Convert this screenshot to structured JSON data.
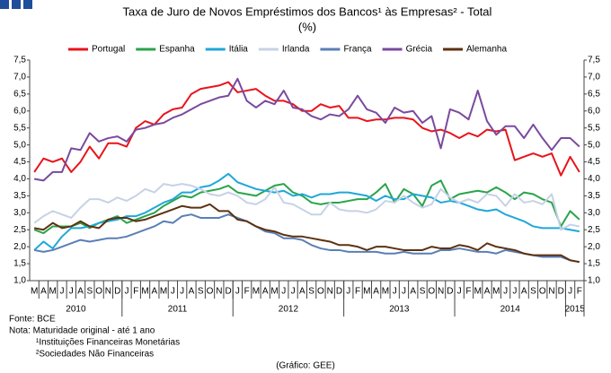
{
  "chart_data": {
    "type": "line",
    "title": "Taxa de Juro de Novos Empréstimos dos Bancos¹ às Empresas² - Total",
    "subtitle": "(%)",
    "categories": [
      "M",
      "A",
      "M",
      "J",
      "J",
      "A",
      "S",
      "O",
      "N",
      "D",
      "J",
      "F",
      "M",
      "A",
      "M",
      "J",
      "J",
      "A",
      "S",
      "O",
      "N",
      "D",
      "J",
      "F",
      "M",
      "A",
      "M",
      "J",
      "J",
      "A",
      "S",
      "O",
      "N",
      "D",
      "J",
      "F",
      "M",
      "A",
      "M",
      "J",
      "J",
      "A",
      "S",
      "O",
      "N",
      "D",
      "J",
      "F",
      "M",
      "A",
      "M",
      "J",
      "J",
      "A",
      "S",
      "O",
      "N",
      "D",
      "J",
      "F"
    ],
    "years": [
      {
        "label": "2010",
        "months": 10
      },
      {
        "label": "2011",
        "months": 12
      },
      {
        "label": "2012",
        "months": 12
      },
      {
        "label": "2013",
        "months": 12
      },
      {
        "label": "2014",
        "months": 12
      },
      {
        "label": "2015",
        "months": 2
      }
    ],
    "ylim": [
      1.0,
      7.5
    ],
    "yticks": [
      {
        "value": 1.0,
        "label": "1,0"
      },
      {
        "value": 1.5,
        "label": "1,5"
      },
      {
        "value": 2.0,
        "label": "2,0"
      },
      {
        "value": 2.5,
        "label": "2,5"
      },
      {
        "value": 3.0,
        "label": "3,0"
      },
      {
        "value": 3.5,
        "label": "3,5"
      },
      {
        "value": 4.0,
        "label": "4,0"
      },
      {
        "value": 4.5,
        "label": "4,5"
      },
      {
        "value": 5.0,
        "label": "5,0"
      },
      {
        "value": 5.5,
        "label": "5,5"
      },
      {
        "value": 6.0,
        "label": "6,0"
      },
      {
        "value": 6.5,
        "label": "6,5"
      },
      {
        "value": 7.0,
        "label": "7,0"
      },
      {
        "value": 7.5,
        "label": "7,5"
      }
    ],
    "y2lim": [
      1.0,
      7.5
    ],
    "y2ticks": [
      {
        "value": 1.0,
        "label": "1,0"
      },
      {
        "value": 1.5,
        "label": "1,5"
      },
      {
        "value": 2.0,
        "label": "2,0"
      },
      {
        "value": 2.5,
        "label": "2,5"
      },
      {
        "value": 3.0,
        "label": "3,0"
      },
      {
        "value": 3.5,
        "label": "3,5"
      },
      {
        "value": 4.0,
        "label": "4,0"
      },
      {
        "value": 4.5,
        "label": "4,5"
      },
      {
        "value": 5.0,
        "label": "5,0"
      },
      {
        "value": 5.5,
        "label": "5,5"
      },
      {
        "value": 6.0,
        "label": "6,0"
      },
      {
        "value": 6.5,
        "label": "6,5"
      },
      {
        "value": 7.0,
        "label": "7,0"
      },
      {
        "value": 7.5,
        "label": "7,5"
      }
    ],
    "grid": false,
    "legend": "top",
    "series": [
      {
        "name": "Portugal",
        "color": "#e8141c",
        "values": [
          4.2,
          4.6,
          4.5,
          4.6,
          4.2,
          4.5,
          4.95,
          4.6,
          5.05,
          5.05,
          4.95,
          5.5,
          5.7,
          5.6,
          5.9,
          6.05,
          6.1,
          6.5,
          6.65,
          6.7,
          6.75,
          6.85,
          6.55,
          6.6,
          6.65,
          6.45,
          6.3,
          6.3,
          6.2,
          6.0,
          6.0,
          6.2,
          6.1,
          6.15,
          5.8,
          5.8,
          5.7,
          5.75,
          5.75,
          5.8,
          5.8,
          5.75,
          5.5,
          5.4,
          5.45,
          5.35,
          5.2,
          5.35,
          5.25,
          5.45,
          5.4,
          5.45,
          4.55,
          4.65,
          4.75,
          4.65,
          4.75,
          4.1,
          4.65,
          4.2
        ]
      },
      {
        "name": "Espanha",
        "color": "#2aa44a",
        "values": [
          2.5,
          2.4,
          2.6,
          2.6,
          2.6,
          2.7,
          2.55,
          2.7,
          2.8,
          2.9,
          2.7,
          2.8,
          2.9,
          3.0,
          3.2,
          3.35,
          3.5,
          3.45,
          3.6,
          3.65,
          3.7,
          3.8,
          3.6,
          3.55,
          3.5,
          3.65,
          3.8,
          3.85,
          3.6,
          3.5,
          3.3,
          3.25,
          3.3,
          3.3,
          3.35,
          3.4,
          3.4,
          3.6,
          3.85,
          3.3,
          3.7,
          3.55,
          3.2,
          3.8,
          3.95,
          3.4,
          3.55,
          3.6,
          3.65,
          3.6,
          3.75,
          3.6,
          3.4,
          3.6,
          3.55,
          3.4,
          3.3,
          2.6,
          3.05,
          2.8
        ]
      },
      {
        "name": "Itália",
        "color": "#1fa8d8",
        "values": [
          1.9,
          2.15,
          1.95,
          2.3,
          2.55,
          2.55,
          2.6,
          2.7,
          2.75,
          2.8,
          2.9,
          2.9,
          3.0,
          3.15,
          3.3,
          3.4,
          3.6,
          3.6,
          3.75,
          3.8,
          3.95,
          4.15,
          3.9,
          3.8,
          3.7,
          3.65,
          3.6,
          3.65,
          3.5,
          3.55,
          3.45,
          3.55,
          3.55,
          3.6,
          3.6,
          3.55,
          3.5,
          3.35,
          3.5,
          3.4,
          3.4,
          3.55,
          3.5,
          3.45,
          3.3,
          3.35,
          3.3,
          3.2,
          3.1,
          3.05,
          3.1,
          2.95,
          2.85,
          2.75,
          2.6,
          2.55,
          2.55,
          2.55,
          2.5,
          2.45
        ]
      },
      {
        "name": "Irlanda",
        "color": "#c6d2e6",
        "values": [
          2.7,
          2.9,
          3.05,
          2.95,
          2.85,
          3.15,
          3.4,
          3.4,
          3.3,
          3.45,
          3.35,
          3.5,
          3.7,
          3.6,
          3.85,
          3.8,
          3.85,
          3.8,
          3.7,
          3.55,
          3.5,
          3.6,
          3.5,
          3.3,
          3.25,
          3.4,
          3.75,
          3.3,
          3.25,
          3.1,
          2.95,
          2.95,
          3.3,
          3.1,
          3.05,
          3.05,
          3.0,
          3.1,
          3.35,
          3.3,
          3.5,
          3.3,
          3.15,
          3.25,
          3.7,
          3.45,
          3.3,
          3.4,
          3.3,
          3.55,
          3.5,
          3.2,
          3.55,
          3.3,
          3.35,
          3.25,
          3.55,
          2.5,
          2.65,
          2.6
        ]
      },
      {
        "name": "França",
        "color": "#5a7fb5",
        "values": [
          1.9,
          1.85,
          1.9,
          2.0,
          2.1,
          2.2,
          2.15,
          2.2,
          2.25,
          2.25,
          2.3,
          2.4,
          2.5,
          2.6,
          2.75,
          2.7,
          2.9,
          2.95,
          2.85,
          2.85,
          2.85,
          2.95,
          2.85,
          2.75,
          2.6,
          2.45,
          2.4,
          2.25,
          2.25,
          2.2,
          2.05,
          1.95,
          1.9,
          1.9,
          1.85,
          1.85,
          1.85,
          1.85,
          1.8,
          1.8,
          1.85,
          1.8,
          1.8,
          1.8,
          1.9,
          1.9,
          1.95,
          1.9,
          1.85,
          1.85,
          1.8,
          1.9,
          1.85,
          1.8,
          1.75,
          1.7,
          1.7,
          1.7,
          1.6,
          1.55
        ]
      },
      {
        "name": "Grécia",
        "color": "#7a4a9e",
        "values": [
          4.0,
          3.95,
          4.2,
          4.2,
          4.9,
          4.85,
          5.35,
          5.1,
          5.2,
          5.25,
          5.1,
          5.45,
          5.5,
          5.6,
          5.65,
          5.8,
          5.9,
          6.05,
          6.2,
          6.3,
          6.4,
          6.45,
          6.95,
          6.3,
          6.1,
          6.3,
          6.2,
          6.6,
          6.1,
          6.05,
          5.85,
          5.75,
          5.9,
          5.85,
          6.05,
          6.45,
          6.05,
          5.95,
          5.65,
          6.1,
          5.95,
          6.0,
          5.65,
          5.85,
          4.9,
          6.05,
          5.95,
          5.75,
          6.6,
          5.7,
          5.3,
          5.55,
          5.55,
          5.2,
          5.6,
          5.2,
          4.85,
          5.2,
          5.2,
          4.95
        ]
      },
      {
        "name": "Alemanha",
        "color": "#5c3210",
        "values": [
          2.55,
          2.5,
          2.7,
          2.55,
          2.6,
          2.75,
          2.6,
          2.55,
          2.8,
          2.85,
          2.85,
          2.75,
          2.8,
          2.9,
          3.0,
          3.1,
          3.2,
          3.15,
          3.15,
          3.25,
          3.05,
          3.05,
          2.8,
          2.75,
          2.6,
          2.5,
          2.45,
          2.35,
          2.3,
          2.3,
          2.25,
          2.2,
          2.15,
          2.05,
          2.05,
          2.0,
          1.9,
          2.0,
          2.0,
          1.95,
          1.9,
          1.9,
          1.9,
          2.0,
          1.95,
          1.95,
          2.05,
          2.0,
          1.9,
          2.1,
          2.0,
          1.95,
          1.9,
          1.8,
          1.75,
          1.75,
          1.75,
          1.75,
          1.6,
          1.55
        ]
      }
    ],
    "notes": [
      "Fonte: BCE",
      "Nota: Maturidade original - até 1 ano",
      "¹Instituições Financeiras Monetárias",
      "²Sociedades Não Financeiras"
    ],
    "credit": "(Gráfico: GEE)"
  }
}
